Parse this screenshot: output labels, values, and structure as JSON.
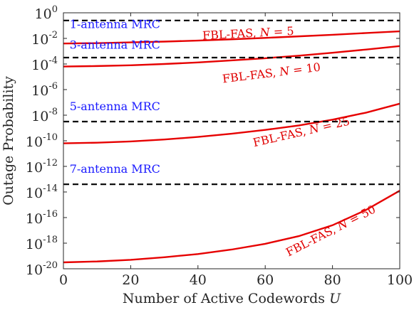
{
  "chart_data": {
    "type": "line",
    "xlabel": "Number of Active Codewords",
    "xlabel_var": "U",
    "ylabel": "Outage Probability",
    "xlim": [
      0,
      100
    ],
    "ylim_log10": [
      -20,
      0
    ],
    "yscale": "log",
    "grid": false,
    "x_ticks": [
      "0",
      "20",
      "40",
      "60",
      "80",
      "100"
    ],
    "y_ticks_exponents": [
      "0",
      "-2",
      "-4",
      "-6",
      "-8",
      "-10",
      "-12",
      "-14",
      "-16",
      "-18",
      "-20"
    ],
    "y_tick_base": "10",
    "x": [
      0,
      10,
      20,
      30,
      40,
      50,
      60,
      70,
      80,
      90,
      100
    ],
    "series": [
      {
        "label": "FBL-FAS, N = 5",
        "color": "#e60000",
        "style": "solid",
        "log10_values": [
          -2.4,
          -2.37,
          -2.31,
          -2.25,
          -2.17,
          -2.07,
          -1.96,
          -1.84,
          -1.72,
          -1.58,
          -1.45
        ]
      },
      {
        "label": "FBL-FAS, N = 10",
        "color": "#e60000",
        "style": "solid",
        "log10_values": [
          -4.2,
          -4.16,
          -4.1,
          -4.0,
          -3.88,
          -3.72,
          -3.55,
          -3.35,
          -3.12,
          -2.87,
          -2.6
        ]
      },
      {
        "label": "FBL-FAS, N = 25",
        "color": "#e60000",
        "style": "solid",
        "log10_values": [
          -10.2,
          -10.15,
          -10.05,
          -9.9,
          -9.7,
          -9.45,
          -9.15,
          -8.8,
          -8.35,
          -7.8,
          -7.1
        ]
      },
      {
        "label": "FBL-FAS, N = 50",
        "color": "#e60000",
        "style": "solid",
        "log10_values": [
          -19.5,
          -19.43,
          -19.3,
          -19.1,
          -18.85,
          -18.5,
          -18.05,
          -17.45,
          -16.6,
          -15.4,
          -13.9
        ]
      },
      {
        "label": "1-antenna MRC",
        "color": "#000000",
        "style": "dashed",
        "log10_values": [
          -0.6,
          -0.6,
          -0.6,
          -0.6,
          -0.6,
          -0.6,
          -0.6,
          -0.6,
          -0.6,
          -0.6,
          -0.6
        ]
      },
      {
        "label": "3-antenna MRC",
        "color": "#000000",
        "style": "dashed",
        "log10_values": [
          -3.5,
          -3.5,
          -3.5,
          -3.5,
          -3.5,
          -3.5,
          -3.5,
          -3.5,
          -3.5,
          -3.5,
          -3.5
        ]
      },
      {
        "label": "5-antenna MRC",
        "color": "#000000",
        "style": "dashed",
        "log10_values": [
          -8.5,
          -8.5,
          -8.5,
          -8.5,
          -8.5,
          -8.5,
          -8.5,
          -8.5,
          -8.5,
          -8.5,
          -8.5
        ]
      },
      {
        "label": "7-antenna MRC",
        "color": "#000000",
        "style": "dashed",
        "log10_values": [
          -13.4,
          -13.4,
          -13.4,
          -13.4,
          -13.4,
          -13.4,
          -13.4,
          -13.4,
          -13.4,
          -13.4,
          -13.4
        ]
      }
    ],
    "annotations": [
      {
        "text": "1-antenna MRC",
        "color": "#1a1aff",
        "x": 1,
        "log10_y": -1.2
      },
      {
        "text": "3-antenna MRC",
        "color": "#1a1aff",
        "x": 1,
        "log10_y": -2.8
      },
      {
        "text": "5-antenna MRC",
        "color": "#1a1aff",
        "x": 1,
        "log10_y": -7.6
      },
      {
        "text": "7-antenna MRC",
        "color": "#1a1aff",
        "x": 1,
        "log10_y": -12.5
      },
      {
        "text": "FBL-FAS, ",
        "var": "N",
        "rest": " = 5",
        "color": "#e00000",
        "x": 55,
        "log10_y": -1.9,
        "rotate": -3
      },
      {
        "text": "FBL-FAS, ",
        "var": "N",
        "rest": " = 10",
        "color": "#e00000",
        "x": 62,
        "log10_y": -5.0,
        "rotate": -7
      },
      {
        "text": "FBL-FAS, ",
        "var": "N",
        "rest": " = 25",
        "color": "#e00000",
        "x": 71,
        "log10_y": -9.6,
        "rotate": -13
      },
      {
        "text": "FBL-FAS, ",
        "var": "N",
        "rest": " = 50",
        "color": "#e00000",
        "x": 80,
        "log10_y": -17.3,
        "rotate": -27
      }
    ]
  }
}
